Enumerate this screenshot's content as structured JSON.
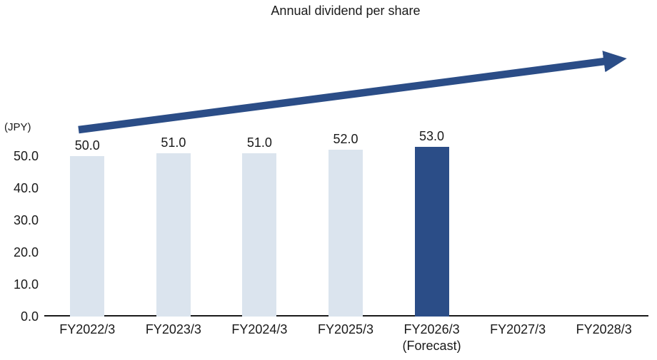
{
  "chart": {
    "title": "Annual dividend per share",
    "unit_label": "(JPY)"
  },
  "chart_data": {
    "type": "bar",
    "title": "Annual dividend per share",
    "ylabel": "(JPY)",
    "xlabel": "",
    "ylim": [
      0,
      55
    ],
    "grid": false,
    "legend": null,
    "yticks": [
      {
        "value": 0,
        "label": "0.0"
      },
      {
        "value": 10,
        "label": "10.0"
      },
      {
        "value": 20,
        "label": "20.0"
      },
      {
        "value": 30,
        "label": "30.0"
      },
      {
        "value": 40,
        "label": "40.0"
      },
      {
        "value": 50,
        "label": "50.0"
      }
    ],
    "categories": [
      "FY2022/3",
      "FY2023/3",
      "FY2024/3",
      "FY2025/3",
      "FY2026/3",
      "FY2027/3",
      "FY2028/3"
    ],
    "values": [
      50.0,
      51.0,
      51.0,
      52.0,
      53.0,
      null,
      null
    ],
    "bars": [
      {
        "category": "FY2022/3",
        "value": 50.0,
        "value_label": "50.0",
        "style": "actual"
      },
      {
        "category": "FY2023/3",
        "value": 51.0,
        "value_label": "51.0",
        "style": "actual"
      },
      {
        "category": "FY2024/3",
        "value": 51.0,
        "value_label": "51.0",
        "style": "actual"
      },
      {
        "category": "FY2025/3",
        "value": 52.0,
        "value_label": "52.0",
        "style": "actual"
      },
      {
        "category": "FY2026/3",
        "sublabel": "(Forecast)",
        "value": 53.0,
        "value_label": "53.0",
        "style": "forecast"
      },
      {
        "category": "FY2027/3",
        "value": null
      },
      {
        "category": "FY2028/3",
        "value": null
      }
    ],
    "annotations": [
      {
        "name": "upward-trend-arrow",
        "description": "thick dark blue arrow rising left to right above the bars"
      }
    ],
    "colors": {
      "actual_bar": "#dbe4ee",
      "forecast_bar": "#2b4d87",
      "arrow": "#2b4d87",
      "axis": "#1a1a1a",
      "text": "#1a1a1a"
    }
  }
}
